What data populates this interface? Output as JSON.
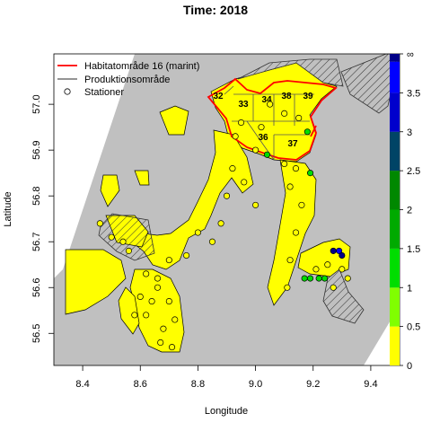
{
  "title": "Time: 2018",
  "xlabel": "Longitude",
  "ylabel": "Latitude",
  "x_ticks": [
    "8.4",
    "8.6",
    "8.8",
    "9.0",
    "9.2",
    "9.4"
  ],
  "y_ticks": [
    "56.5",
    "56.6",
    "56.7",
    "56.8",
    "56.9",
    "57.0"
  ],
  "legend": {
    "items": [
      {
        "label": "Habitatområde 16 (marint)",
        "symbol": "red-line",
        "color": "#ff0000"
      },
      {
        "label": "Produktionsområde",
        "symbol": "gray-line",
        "color": "#555555"
      },
      {
        "label": "Stationer",
        "symbol": "circle",
        "color": "#000000"
      }
    ]
  },
  "production_areas": [
    "32",
    "33",
    "34",
    "38",
    "39",
    "36",
    "37"
  ],
  "colorbar": {
    "labels": [
      "0",
      "0.5",
      "1",
      "1.5",
      "2",
      "2.5",
      "3",
      "3.5",
      "∞"
    ],
    "bands": [
      {
        "from": 0,
        "to": 0.5,
        "color": "#ffff00"
      },
      {
        "from": 0.5,
        "to": 1.0,
        "color": "#80ff00"
      },
      {
        "from": 1.0,
        "to": 1.5,
        "color": "#00dd00"
      },
      {
        "from": 1.5,
        "to": 2.0,
        "color": "#00aa00"
      },
      {
        "from": 2.0,
        "to": 2.5,
        "color": "#008800"
      },
      {
        "from": 2.5,
        "to": 3.0,
        "color": "#004466"
      },
      {
        "from": 3.0,
        "to": 3.5,
        "color": "#0000cc"
      },
      {
        "from": 3.5,
        "to": 3.9,
        "color": "#0000ff"
      },
      {
        "from": 3.9,
        "to": 4.0,
        "color": "#000088"
      }
    ]
  },
  "colors": {
    "land": "#c0c0c0",
    "water": "#ffff00",
    "habitat": "#ff0000",
    "hatch": "#333333"
  },
  "stations": [
    {
      "lon": 9.05,
      "lat": 57.0,
      "v": 0.2
    },
    {
      "lon": 9.1,
      "lat": 56.98,
      "v": 0.3
    },
    {
      "lon": 9.15,
      "lat": 56.97,
      "v": 0.2
    },
    {
      "lon": 9.18,
      "lat": 56.94,
      "v": 1.3
    },
    {
      "lon": 9.02,
      "lat": 56.95,
      "v": 0.2
    },
    {
      "lon": 8.95,
      "lat": 56.96,
      "v": 0.1
    },
    {
      "lon": 8.93,
      "lat": 56.93,
      "v": 0.2
    },
    {
      "lon": 9.0,
      "lat": 56.9,
      "v": 0.2
    },
    {
      "lon": 9.04,
      "lat": 56.89,
      "v": 1.2
    },
    {
      "lon": 9.1,
      "lat": 56.87,
      "v": 0.3
    },
    {
      "lon": 9.14,
      "lat": 56.86,
      "v": 0.2
    },
    {
      "lon": 9.19,
      "lat": 56.85,
      "v": 1.1
    },
    {
      "lon": 8.92,
      "lat": 56.86,
      "v": 0.2
    },
    {
      "lon": 8.96,
      "lat": 56.83,
      "v": 0.2
    },
    {
      "lon": 8.9,
      "lat": 56.8,
      "v": 0.1
    },
    {
      "lon": 9.0,
      "lat": 56.78,
      "v": 0.2
    },
    {
      "lon": 9.12,
      "lat": 56.82,
      "v": 0.2
    },
    {
      "lon": 9.16,
      "lat": 56.78,
      "v": 0.2
    },
    {
      "lon": 9.14,
      "lat": 56.72,
      "v": 0.2
    },
    {
      "lon": 9.12,
      "lat": 56.66,
      "v": 0.2
    },
    {
      "lon": 9.11,
      "lat": 56.6,
      "v": 0.2
    },
    {
      "lon": 8.88,
      "lat": 56.74,
      "v": 0.2
    },
    {
      "lon": 8.85,
      "lat": 56.7,
      "v": 0.2
    },
    {
      "lon": 8.8,
      "lat": 56.72,
      "v": 0.2
    },
    {
      "lon": 8.76,
      "lat": 56.67,
      "v": 0.2
    },
    {
      "lon": 8.7,
      "lat": 56.66,
      "v": 0.2
    },
    {
      "lon": 8.66,
      "lat": 56.62,
      "v": 0.2
    },
    {
      "lon": 8.62,
      "lat": 56.63,
      "v": 0.2
    },
    {
      "lon": 8.6,
      "lat": 56.58,
      "v": 0.2
    },
    {
      "lon": 8.64,
      "lat": 56.57,
      "v": 0.2
    },
    {
      "lon": 8.62,
      "lat": 56.54,
      "v": 0.2
    },
    {
      "lon": 8.68,
      "lat": 56.51,
      "v": 0.2
    },
    {
      "lon": 8.72,
      "lat": 56.53,
      "v": 0.2
    },
    {
      "lon": 8.67,
      "lat": 56.48,
      "v": 0.2
    },
    {
      "lon": 8.71,
      "lat": 56.47,
      "v": 0.2
    },
    {
      "lon": 8.58,
      "lat": 56.54,
      "v": 0.2
    },
    {
      "lon": 8.7,
      "lat": 56.57,
      "v": 0.2
    },
    {
      "lon": 8.66,
      "lat": 56.6,
      "v": 0.2
    },
    {
      "lon": 9.27,
      "lat": 56.68,
      "v": 3.9
    },
    {
      "lon": 9.29,
      "lat": 56.68,
      "v": 3.8
    },
    {
      "lon": 9.3,
      "lat": 56.67,
      "v": 3.9
    },
    {
      "lon": 9.25,
      "lat": 56.65,
      "v": 0.2
    },
    {
      "lon": 9.3,
      "lat": 56.64,
      "v": 0.2
    },
    {
      "lon": 9.32,
      "lat": 56.62,
      "v": 0.2
    },
    {
      "lon": 9.17,
      "lat": 56.62,
      "v": 1.2
    },
    {
      "lon": 9.19,
      "lat": 56.62,
      "v": 1.2
    },
    {
      "lon": 9.22,
      "lat": 56.62,
      "v": 1.3
    },
    {
      "lon": 9.24,
      "lat": 56.62,
      "v": 1.2
    },
    {
      "lon": 9.21,
      "lat": 56.64,
      "v": 0.2
    },
    {
      "lon": 9.27,
      "lat": 56.6,
      "v": 0.2
    },
    {
      "lon": 8.5,
      "lat": 56.71,
      "v": 0.2
    },
    {
      "lon": 8.54,
      "lat": 56.7,
      "v": 0.2
    },
    {
      "lon": 8.56,
      "lat": 56.68,
      "v": 0.2
    },
    {
      "lon": 8.46,
      "lat": 56.74,
      "v": 0.2
    }
  ]
}
